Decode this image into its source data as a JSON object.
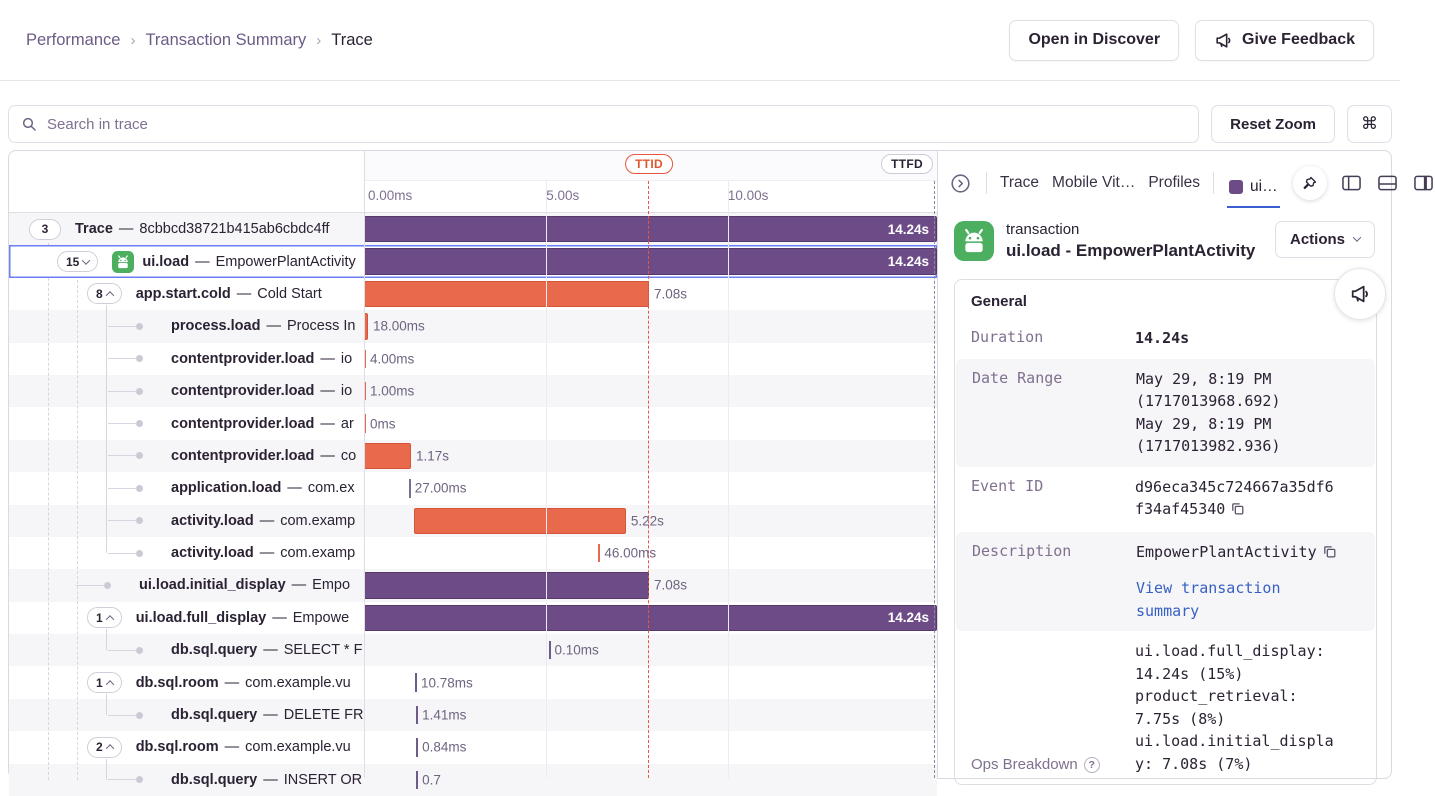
{
  "colors": {
    "purple": "#6d4b86",
    "purpleBorder": "#553969",
    "orange": "#e8694c",
    "orangeBorder": "#d6553a",
    "red": "#e0562f",
    "blue": "#3b5fd3",
    "link": "#3661c4",
    "green": "#4cae5f",
    "stripe": "#f6f5f8",
    "border": "#e0dce4",
    "selected": "#6a7ef5",
    "textDark": "#2b2233",
    "textGray": "#80708f"
  },
  "header": {
    "breadcrumb": [
      {
        "label": "Performance",
        "current": false
      },
      {
        "label": "Transaction Summary",
        "current": false
      },
      {
        "label": "Trace",
        "current": true
      }
    ],
    "open_in_discover": "Open in Discover",
    "give_feedback": "Give Feedback"
  },
  "toolbar": {
    "search_placeholder": "Search in trace",
    "reset_zoom": "Reset Zoom",
    "shortcut": "⌘"
  },
  "timeline": {
    "ticks": [
      {
        "label": "0.00ms",
        "pct": 0.7
      },
      {
        "label": "5.00s",
        "pct": 31.8
      },
      {
        "label": "10.00s",
        "pct": 63.5
      }
    ],
    "ttid_label": "TTID",
    "ttfd_label": "TTFD"
  },
  "misc": {
    "separator": "—"
  },
  "trace_rows": [
    {
      "op": "Trace",
      "desc": "8cbbcd38721b415ab6cbdc4ff",
      "pill": "3",
      "depth": 0,
      "striped": true,
      "bar": {
        "type": "bar",
        "color": "purple",
        "start": 0,
        "width": 100,
        "label": "14.24s",
        "inside": true
      }
    },
    {
      "op": "ui.load",
      "desc": "EmpowerPlantActivity",
      "pill": "15",
      "chevron": "down",
      "depth": 1,
      "android": true,
      "selected": true,
      "bar": {
        "type": "bar",
        "color": "purple",
        "start": 0,
        "width": 100,
        "label": "14.24s",
        "inside": true
      }
    },
    {
      "op": "app.start.cold",
      "desc": "Cold Start",
      "pill": "8",
      "chevron": "up",
      "depth": 2,
      "bar": {
        "type": "bar",
        "color": "orange",
        "start": 0,
        "width": 49.74,
        "label": "7.08s"
      }
    },
    {
      "op": "process.load",
      "desc": "Process In",
      "depth": 3,
      "leaf": true,
      "striped": true,
      "bar": {
        "type": "bar",
        "color": "orange",
        "start": 0,
        "width": 0.7,
        "label": "18.00ms"
      }
    },
    {
      "op": "contentprovider.load",
      "desc": "io",
      "depth": 3,
      "leaf": true,
      "bar": {
        "type": "tick",
        "color": "orange",
        "start": 0,
        "label": "4.00ms"
      }
    },
    {
      "op": "contentprovider.load",
      "desc": "io",
      "depth": 3,
      "leaf": true,
      "striped": true,
      "bar": {
        "type": "tick",
        "color": "orange",
        "start": 0,
        "label": "1.00ms"
      }
    },
    {
      "op": "contentprovider.load",
      "desc": "ar",
      "depth": 3,
      "leaf": true,
      "bar": {
        "type": "tick",
        "color": "orange",
        "start": 0,
        "label": "0ms"
      }
    },
    {
      "op": "contentprovider.load",
      "desc": "co",
      "depth": 3,
      "leaf": true,
      "striped": true,
      "bar": {
        "type": "bar",
        "color": "orange",
        "start": 0,
        "width": 8.2,
        "label": "1.17s"
      }
    },
    {
      "op": "application.load",
      "desc": "com.ex",
      "depth": 3,
      "leaf": true,
      "bar": {
        "type": "tick",
        "color": "muted",
        "start": 7.8,
        "label": "27.00ms"
      }
    },
    {
      "op": "activity.load",
      "desc": "com.examp",
      "depth": 3,
      "leaf": true,
      "striped": true,
      "bar": {
        "type": "bar",
        "color": "orange",
        "start": 8.7,
        "width": 37,
        "label": "5.22s"
      }
    },
    {
      "op": "activity.load",
      "desc": "com.examp",
      "depth": 3,
      "leaf": true,
      "bar": {
        "type": "tick",
        "color": "orange",
        "start": 40.9,
        "label": "46.00ms"
      }
    },
    {
      "op": "ui.load.initial_display",
      "desc": "Empo",
      "depth": 2,
      "leaf": true,
      "striped": true,
      "bar": {
        "type": "bar",
        "color": "purple",
        "start": 0,
        "width": 49.74,
        "label": "7.08s"
      }
    },
    {
      "op": "ui.load.full_display",
      "desc": "Empowe",
      "pill": "1",
      "chevron": "up",
      "depth": 2,
      "bar": {
        "type": "bar",
        "color": "purple",
        "start": 0,
        "width": 100,
        "label": "14.24s",
        "inside": true
      }
    },
    {
      "op": "db.sql.query",
      "desc": "SELECT * F",
      "depth": 3,
      "leaf": true,
      "striped": true,
      "bar": {
        "type": "tick",
        "color": "purple",
        "start": 32.2,
        "label": "0.10ms"
      }
    },
    {
      "op": "db.sql.room",
      "desc": "com.example.vu",
      "pill": "1",
      "chevron": "up",
      "depth": 2,
      "bar": {
        "type": "tick",
        "color": "purple",
        "start": 8.9,
        "label": "10.78ms"
      }
    },
    {
      "op": "db.sql.query",
      "desc": "DELETE FR",
      "depth": 3,
      "leaf": true,
      "striped": true,
      "bar": {
        "type": "tick",
        "color": "purple",
        "start": 9.1,
        "label": "1.41ms"
      }
    },
    {
      "op": "db.sql.room",
      "desc": "com.example.vu",
      "pill": "2",
      "chevron": "up",
      "depth": 2,
      "bar": {
        "type": "tick",
        "color": "purple",
        "start": 9.1,
        "label": "0.84ms"
      }
    },
    {
      "op": "db.sql.query",
      "desc": "INSERT OR",
      "depth": 3,
      "leaf": true,
      "striped": true,
      "bar": {
        "type": "tick",
        "color": "purple",
        "start": 9.1,
        "label": "0.7"
      }
    }
  ],
  "drawer": {
    "tabs": [
      {
        "label": "Trace"
      },
      {
        "label": "Mobile Vit…"
      },
      {
        "label": "Profiles"
      }
    ],
    "active_tab": {
      "label": "ui…"
    },
    "transaction": {
      "type_label": "transaction",
      "name": "ui.load - EmpowerPlantActivity",
      "actions_label": "Actions"
    },
    "general": {
      "title": "General",
      "rows": [
        {
          "key": "Duration",
          "values": [
            {
              "text": "14.24s",
              "bold": true
            }
          ]
        },
        {
          "key": "Date Range",
          "striped": true,
          "values": [
            {
              "text": "May 29, 8:19 PM"
            },
            {
              "text": "(1717013968.692)"
            },
            {
              "text": "May 29, 8:19 PM"
            },
            {
              "text": "(1717013982.936)"
            }
          ]
        },
        {
          "key": "Event ID",
          "values": [
            {
              "text": "d96eca345c724667a35df6f34af45340",
              "copy": true
            }
          ]
        },
        {
          "key": "Description",
          "striped": true,
          "values": [
            {
              "text": "EmpowerPlantActivity",
              "copy": true
            },
            {
              "text": "View transaction summary",
              "link": true,
              "spaced": true
            }
          ]
        },
        {
          "key": "Ops Breakdown",
          "help": true,
          "key_bottom": true,
          "sans_key": true,
          "values": [
            {
              "text": "ui.load.full_display: 14.24s (15%)"
            },
            {
              "text": "product_retrieval: 7.75s (8%)"
            },
            {
              "text": "ui.load.initial_display: 7.08s (7%)"
            }
          ]
        }
      ]
    }
  }
}
